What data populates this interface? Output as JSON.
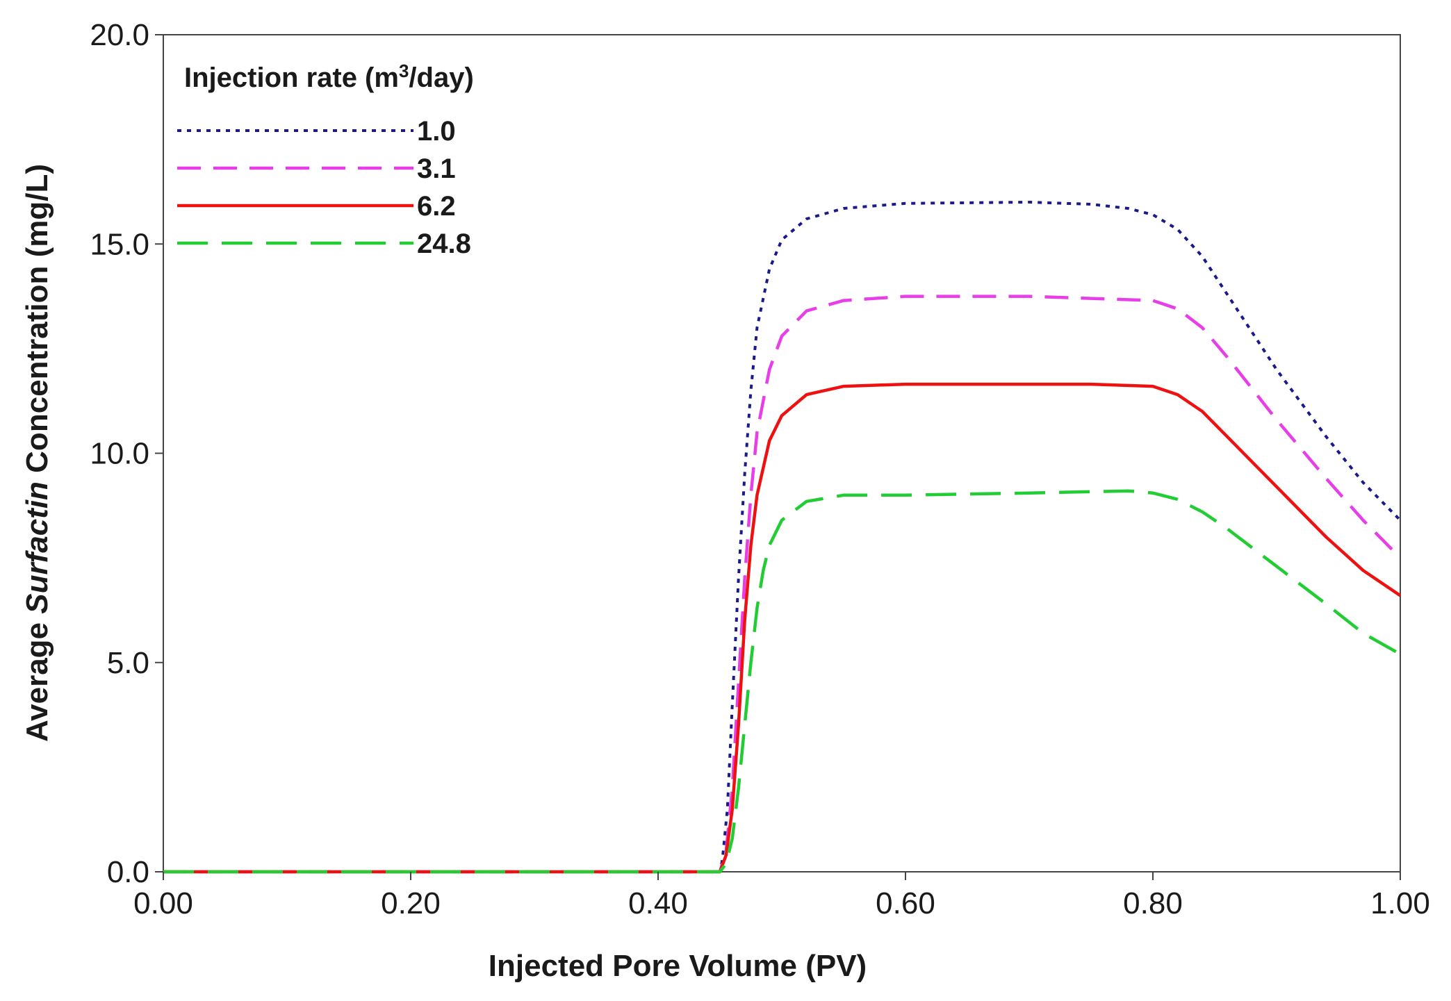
{
  "chart_data": {
    "type": "line",
    "title": "",
    "xlabel": "Injected Pore Volume (PV)",
    "ylabel": {
      "prefix": "Average ",
      "italic": "Surfactin",
      "suffix": " Concentration (mg/L)"
    },
    "xlim": [
      0,
      1.0
    ],
    "ylim": [
      0,
      20
    ],
    "x_ticks": [
      "0.00",
      "0.20",
      "0.40",
      "0.60",
      "0.80",
      "1.00"
    ],
    "y_ticks": [
      "0.0",
      "5.0",
      "10.0",
      "15.0",
      "20.0"
    ],
    "legend": {
      "title_prefix": "Injection rate (m",
      "title_sup": "3",
      "title_suffix": "/day)",
      "position": "top-left"
    },
    "series": [
      {
        "name": "1.0",
        "color": "#1a1a8c",
        "dash": "dotted",
        "points": [
          [
            0,
            0
          ],
          [
            0.45,
            0
          ],
          [
            0.452,
            0.3
          ],
          [
            0.456,
            1.5
          ],
          [
            0.46,
            4
          ],
          [
            0.465,
            7
          ],
          [
            0.47,
            9.5
          ],
          [
            0.475,
            11.5
          ],
          [
            0.48,
            13
          ],
          [
            0.49,
            14.4
          ],
          [
            0.5,
            15.1
          ],
          [
            0.52,
            15.6
          ],
          [
            0.55,
            15.85
          ],
          [
            0.6,
            15.97
          ],
          [
            0.7,
            16.0
          ],
          [
            0.75,
            15.95
          ],
          [
            0.78,
            15.85
          ],
          [
            0.8,
            15.7
          ],
          [
            0.82,
            15.35
          ],
          [
            0.84,
            14.7
          ],
          [
            0.86,
            13.8
          ],
          [
            0.9,
            12.0
          ],
          [
            0.94,
            10.4
          ],
          [
            0.97,
            9.3
          ],
          [
            1.0,
            8.4
          ]
        ]
      },
      {
        "name": "3.1",
        "color": "#e83ee8",
        "dash": "dashed",
        "points": [
          [
            0,
            0
          ],
          [
            0.45,
            0
          ],
          [
            0.455,
            0.5
          ],
          [
            0.46,
            2
          ],
          [
            0.465,
            4.5
          ],
          [
            0.47,
            7
          ],
          [
            0.475,
            9
          ],
          [
            0.48,
            10.5
          ],
          [
            0.49,
            12
          ],
          [
            0.5,
            12.8
          ],
          [
            0.52,
            13.4
          ],
          [
            0.55,
            13.65
          ],
          [
            0.6,
            13.75
          ],
          [
            0.7,
            13.75
          ],
          [
            0.75,
            13.7
          ],
          [
            0.8,
            13.65
          ],
          [
            0.82,
            13.45
          ],
          [
            0.84,
            13.0
          ],
          [
            0.86,
            12.3
          ],
          [
            0.9,
            10.8
          ],
          [
            0.94,
            9.4
          ],
          [
            0.97,
            8.4
          ],
          [
            1.0,
            7.5
          ]
        ]
      },
      {
        "name": "6.2",
        "color": "#ee1111",
        "dash": "solid",
        "points": [
          [
            0,
            0
          ],
          [
            0.45,
            0
          ],
          [
            0.455,
            0.4
          ],
          [
            0.46,
            1.5
          ],
          [
            0.465,
            3.5
          ],
          [
            0.47,
            6
          ],
          [
            0.475,
            7.8
          ],
          [
            0.48,
            9
          ],
          [
            0.49,
            10.3
          ],
          [
            0.5,
            10.9
          ],
          [
            0.52,
            11.4
          ],
          [
            0.55,
            11.6
          ],
          [
            0.6,
            11.65
          ],
          [
            0.7,
            11.65
          ],
          [
            0.75,
            11.65
          ],
          [
            0.8,
            11.6
          ],
          [
            0.82,
            11.4
          ],
          [
            0.84,
            11.0
          ],
          [
            0.86,
            10.4
          ],
          [
            0.9,
            9.2
          ],
          [
            0.94,
            8.0
          ],
          [
            0.97,
            7.2
          ],
          [
            1.0,
            6.6
          ]
        ]
      },
      {
        "name": "24.8",
        "color": "#22cc33",
        "dash": "longdash",
        "points": [
          [
            0,
            0
          ],
          [
            0.45,
            0
          ],
          [
            0.455,
            0.2
          ],
          [
            0.46,
            0.8
          ],
          [
            0.465,
            2
          ],
          [
            0.47,
            3.5
          ],
          [
            0.475,
            5
          ],
          [
            0.48,
            6.3
          ],
          [
            0.485,
            7.2
          ],
          [
            0.49,
            7.8
          ],
          [
            0.5,
            8.4
          ],
          [
            0.52,
            8.85
          ],
          [
            0.55,
            9.0
          ],
          [
            0.6,
            9.0
          ],
          [
            0.7,
            9.05
          ],
          [
            0.78,
            9.1
          ],
          [
            0.8,
            9.05
          ],
          [
            0.82,
            8.9
          ],
          [
            0.84,
            8.6
          ],
          [
            0.86,
            8.2
          ],
          [
            0.9,
            7.3
          ],
          [
            0.94,
            6.4
          ],
          [
            0.97,
            5.7
          ],
          [
            1.0,
            5.2
          ]
        ]
      }
    ]
  }
}
